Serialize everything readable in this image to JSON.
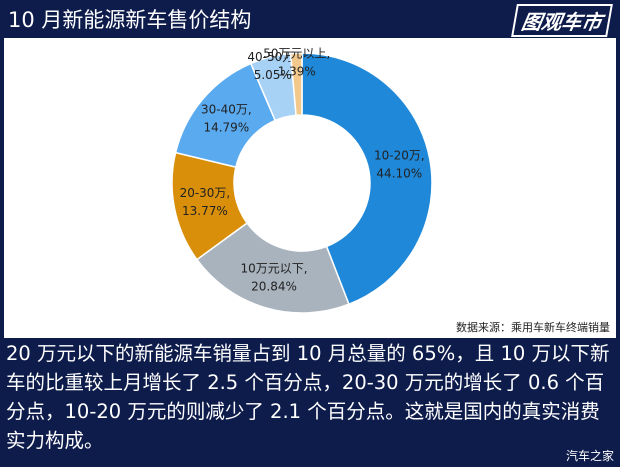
{
  "chart_data": {
    "type": "donut",
    "title": "10 月新能源新车售价结构",
    "categories": [
      "10-20万,",
      "10万元以下,",
      "20-30万,",
      "30-40万,",
      "40-50万,",
      "50万元以上,"
    ],
    "values": [
      44.1,
      20.84,
      13.77,
      14.79,
      5.05,
      1.39
    ],
    "value_labels": [
      "44.10%",
      "20.84%",
      "13.77%",
      "14.79%",
      "5.05%",
      "1.39%"
    ],
    "colors": [
      "#1f88d8",
      "#a9b3bd",
      "#d98f0a",
      "#5aaaf0",
      "#a8d2f5",
      "#f3c98b"
    ],
    "source": "数据来源：乘用车新车终端销量"
  },
  "logo": "图观车市",
  "description": "20 万元以下的新能源车销量占到 10 月总量的 65%，且 10 万以下新车的比重较上月增长了 2.5 个百分点，20-30 万元的增长了 0.6 个百分点，10-20 万元的则减少了 2.1 个百分点。这就是国内的真实消费实力构成。",
  "watermark": "汽车之家"
}
